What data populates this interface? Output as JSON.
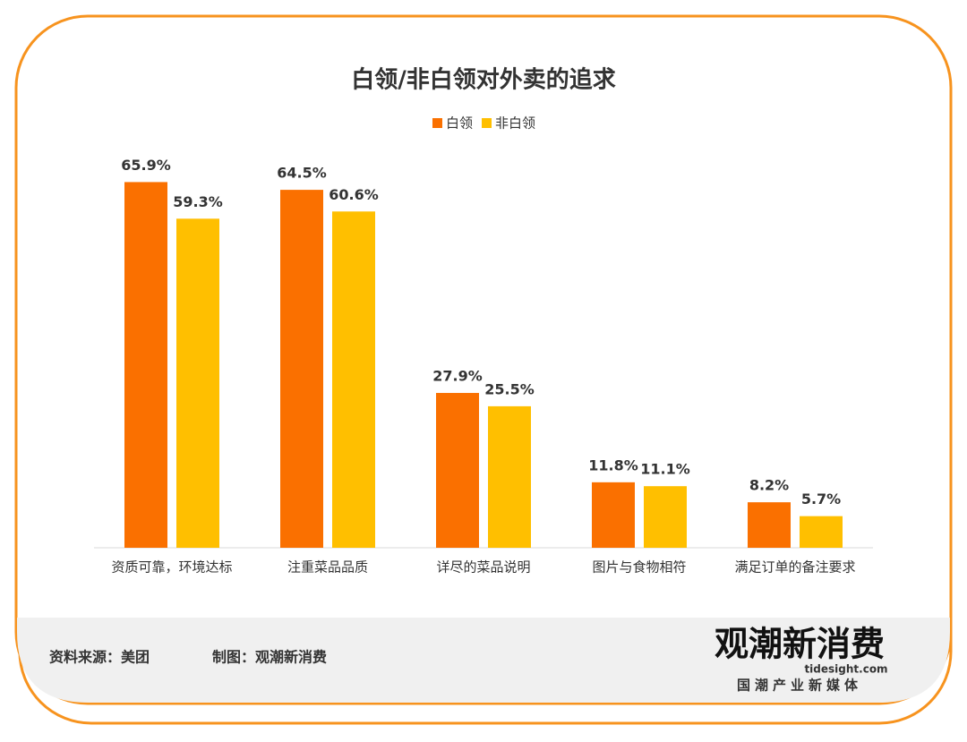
{
  "chart_data": {
    "type": "bar",
    "title": "白领/非白领对外卖的追求",
    "categories": [
      "资质可靠，环境达标",
      "注重菜品品质",
      "详尽的菜品说明",
      "图片与食物相符",
      "满足订单的备注要求"
    ],
    "series": [
      {
        "name": "白领",
        "color": "#fa7000",
        "values": [
          65.9,
          64.5,
          27.9,
          11.8,
          8.2
        ],
        "value_labels": [
          "65.9%",
          "64.5%",
          "27.9%",
          "11.8%",
          "8.2%"
        ]
      },
      {
        "name": "非白领",
        "color": "#ffbf00",
        "values": [
          59.3,
          60.6,
          25.5,
          11.1,
          5.7
        ],
        "value_labels": [
          "59.3%",
          "60.6%",
          "25.5%",
          "11.1%",
          "5.7%"
        ]
      }
    ],
    "legend": "top"
  },
  "footer": {
    "source": "资料来源：美团",
    "credit": "制图：观潮新消费",
    "logo": {
      "name": "观潮新消费",
      "site": "tidesight.com",
      "slogan": "国潮产业新媒体"
    }
  }
}
